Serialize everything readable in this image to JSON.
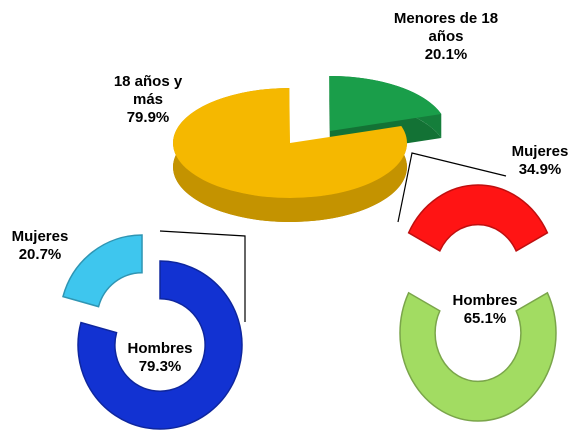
{
  "chart_data": [
    {
      "type": "pie3d",
      "categories": [
        "18 años y más",
        "Menores de 18 años"
      ],
      "values": [
        79.9,
        20.1
      ],
      "value_labels": [
        "79.9%",
        "20.1%"
      ],
      "colors": [
        "#f5b800",
        "#1a9e4a"
      ]
    },
    {
      "type": "donut",
      "categories": [
        "Mujeres",
        "Hombres"
      ],
      "values": [
        20.7,
        79.3
      ],
      "value_labels": [
        "20.7%",
        "79.3%"
      ],
      "colors": [
        "#3ec6ee",
        "#1232d2"
      ]
    },
    {
      "type": "donut",
      "categories": [
        "Mujeres",
        "Hombres"
      ],
      "values": [
        34.9,
        65.1
      ],
      "value_labels": [
        "34.9%",
        "65.1%"
      ],
      "colors": [
        "#ff1414",
        "#a2dc62"
      ]
    }
  ]
}
